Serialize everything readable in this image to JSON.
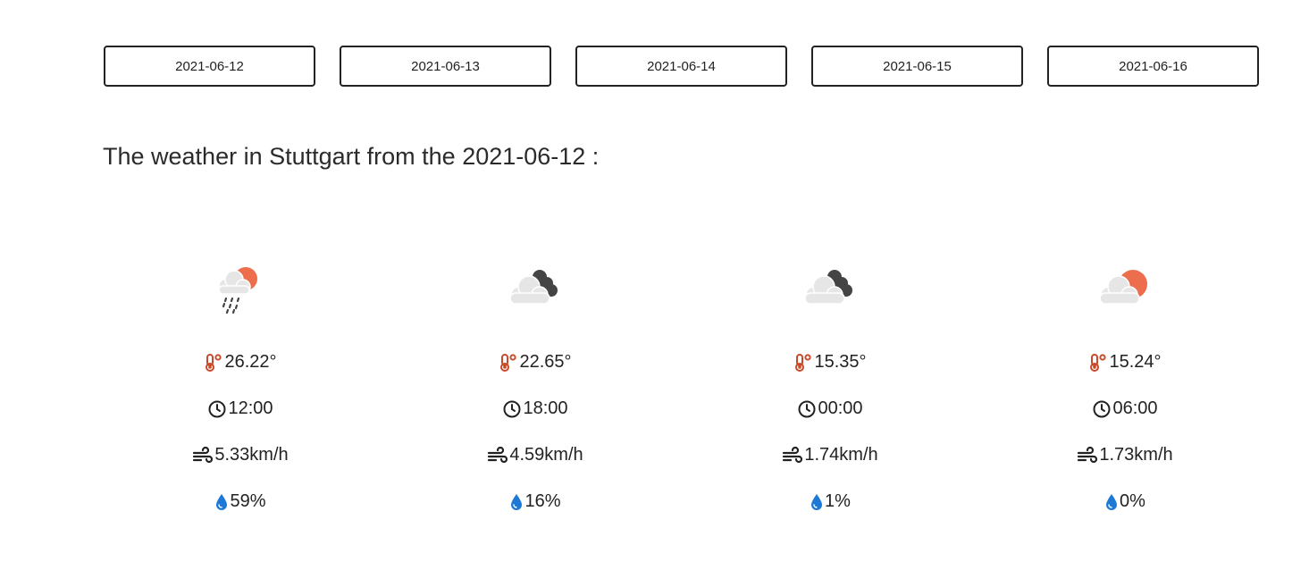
{
  "dates": [
    {
      "label": "2021-06-12"
    },
    {
      "label": "2021-06-13"
    },
    {
      "label": "2021-06-14"
    },
    {
      "label": "2021-06-15"
    },
    {
      "label": "2021-06-16"
    }
  ],
  "heading": "The weather in Stuttgart from the 2021-06-12 :",
  "forecasts": [
    {
      "icon": "cloud-sun-rain-icon",
      "temperature": "26.22°",
      "time": "12:00",
      "wind": "5.33km/h",
      "rain": "59%"
    },
    {
      "icon": "cloud-moon-icon",
      "temperature": "22.65°",
      "time": "18:00",
      "wind": "4.59km/h",
      "rain": "16%"
    },
    {
      "icon": "cloud-moon-icon",
      "temperature": "15.35°",
      "time": "00:00",
      "wind": "1.74km/h",
      "rain": "1%"
    },
    {
      "icon": "cloud-sun-icon",
      "temperature": "15.24°",
      "time": "06:00",
      "wind": "1.73km/h",
      "rain": "0%"
    }
  ],
  "colors": {
    "thermometer": "#c94a2a",
    "sun": "#ec6e4c",
    "moon": "#444444",
    "cloud": "#e6e6e6",
    "droplet": "#1e78d6",
    "button_border": "#222222"
  }
}
